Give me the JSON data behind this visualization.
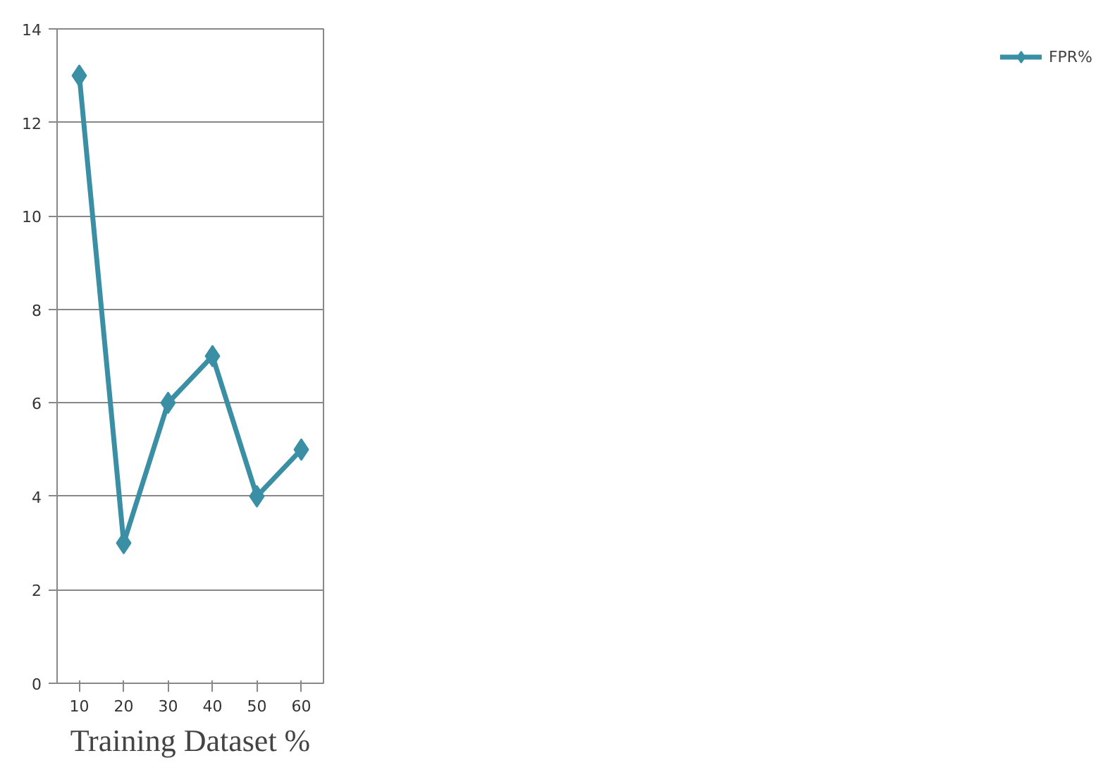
{
  "chart_data": {
    "type": "line",
    "xlabel": "Training Dataset %",
    "categories": [
      "10",
      "20",
      "30",
      "40",
      "50",
      "60"
    ],
    "series": [
      {
        "name": "FPR%",
        "color": "#3a8fa5",
        "values": [
          13,
          3,
          6,
          7,
          4,
          5
        ]
      }
    ],
    "ylim": [
      0,
      14
    ],
    "yticks": [
      0,
      2,
      4,
      6,
      8,
      10,
      12,
      14
    ],
    "grid": "y",
    "legend": "right",
    "marker": "diamond"
  }
}
